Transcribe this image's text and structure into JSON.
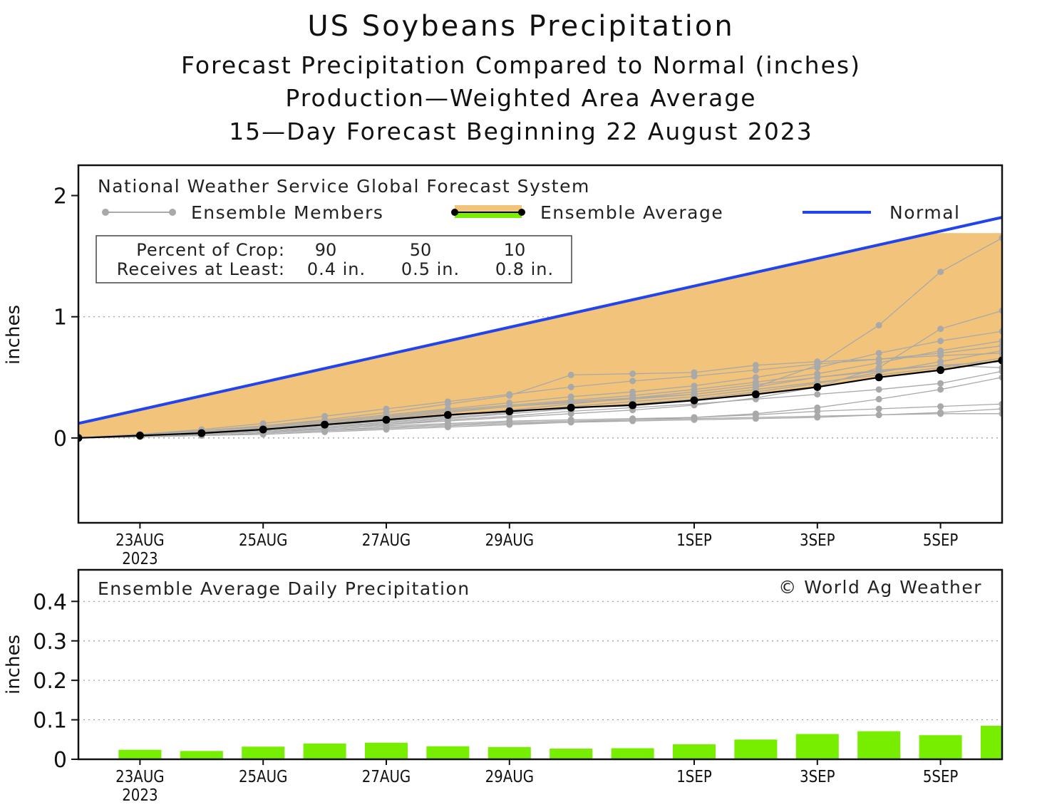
{
  "titles": {
    "line1": "US Soybeans Precipitation",
    "line2": "Forecast Precipitation Compared to Normal (inches)",
    "line3": "Production—Weighted Area Average",
    "line4": "15—Day Forecast Beginning 22 August 2023"
  },
  "colors": {
    "normal": "#2244ee",
    "fill": "#f2c37a",
    "members": "#a9a9a9",
    "average": "#000000",
    "bars": "#77ee00",
    "grid": "#999999"
  },
  "legend": {
    "source": "National Weather Service Global Forecast System",
    "members_label": "Ensemble Members",
    "average_label": "Ensemble Average",
    "normal_label": "Normal"
  },
  "crop_table": {
    "row1_label": "Percent of Crop:",
    "row2_label": "Receives at Least:",
    "percents": [
      "90",
      "50",
      "10"
    ],
    "amounts": [
      "0.4 in.",
      "0.5 in.",
      "0.8 in."
    ]
  },
  "copyright": "© World Ag Weather",
  "chart_data": [
    {
      "type": "line",
      "title": "Forecast Precipitation Compared to Normal (inches)",
      "ylabel": "inches",
      "xlim": [
        0,
        15
      ],
      "ylim": [
        -0.7,
        2.25
      ],
      "yticks": [
        0,
        1,
        2
      ],
      "grid": "dotted at y=0 and y=1",
      "xticks": [
        {
          "x": 1,
          "label": "23AUG",
          "sub": "2023"
        },
        {
          "x": 3,
          "label": "25AUG",
          "sub": ""
        },
        {
          "x": 5,
          "label": "27AUG",
          "sub": ""
        },
        {
          "x": 7,
          "label": "29AUG",
          "sub": ""
        },
        {
          "x": 10,
          "label": "1SEP",
          "sub": ""
        },
        {
          "x": 12,
          "label": "3SEP",
          "sub": ""
        },
        {
          "x": 14,
          "label": "5SEP",
          "sub": ""
        }
      ],
      "normal": {
        "x": [
          0,
          15
        ],
        "y": [
          0.12,
          1.82
        ]
      },
      "fill_top_cap": 1.69,
      "ensemble_average": {
        "x": [
          0,
          1,
          2,
          3,
          4,
          5,
          6,
          7,
          8,
          9,
          10,
          11,
          12,
          13,
          14,
          15
        ],
        "y": [
          0,
          0.02,
          0.04,
          0.07,
          0.11,
          0.15,
          0.19,
          0.22,
          0.25,
          0.27,
          0.31,
          0.36,
          0.42,
          0.5,
          0.56,
          0.64
        ]
      },
      "ensemble_members": [
        [
          0,
          0.03,
          0.06,
          0.09,
          0.13,
          0.18,
          0.23,
          0.27,
          0.31,
          0.35,
          0.4,
          0.46,
          0.53,
          0.62,
          0.72,
          0.8
        ],
        [
          0,
          0.02,
          0.04,
          0.06,
          0.09,
          0.12,
          0.16,
          0.2,
          0.24,
          0.28,
          0.32,
          0.38,
          0.45,
          0.54,
          0.63,
          0.72
        ],
        [
          0,
          0.03,
          0.06,
          0.1,
          0.15,
          0.21,
          0.28,
          0.35,
          0.52,
          0.53,
          0.54,
          0.6,
          0.63,
          0.65,
          0.68,
          0.7
        ],
        [
          0,
          0.02,
          0.04,
          0.07,
          0.11,
          0.16,
          0.21,
          0.26,
          0.3,
          0.33,
          0.36,
          0.42,
          0.6,
          0.93,
          1.37,
          1.65
        ],
        [
          0,
          0.01,
          0.03,
          0.05,
          0.08,
          0.11,
          0.14,
          0.17,
          0.2,
          0.23,
          0.27,
          0.33,
          0.42,
          0.58,
          0.9,
          1.05
        ],
        [
          0,
          0.02,
          0.03,
          0.05,
          0.07,
          0.1,
          0.12,
          0.14,
          0.15,
          0.16,
          0.17,
          0.19,
          0.22,
          0.24,
          0.26,
          0.28
        ],
        [
          0,
          0.01,
          0.02,
          0.04,
          0.06,
          0.08,
          0.1,
          0.12,
          0.13,
          0.14,
          0.15,
          0.16,
          0.17,
          0.19,
          0.21,
          0.24
        ],
        [
          0,
          0.02,
          0.05,
          0.08,
          0.12,
          0.17,
          0.22,
          0.26,
          0.29,
          0.32,
          0.36,
          0.42,
          0.5,
          0.56,
          0.6,
          0.63
        ],
        [
          0,
          0.03,
          0.07,
          0.12,
          0.18,
          0.24,
          0.3,
          0.36,
          0.42,
          0.47,
          0.51,
          0.56,
          0.61,
          0.65,
          0.7,
          0.76
        ],
        [
          0,
          0.01,
          0.02,
          0.03,
          0.05,
          0.07,
          0.09,
          0.11,
          0.13,
          0.15,
          0.17,
          0.2,
          0.25,
          0.32,
          0.4,
          0.5
        ],
        [
          0,
          0.02,
          0.04,
          0.06,
          0.09,
          0.13,
          0.17,
          0.21,
          0.26,
          0.3,
          0.34,
          0.4,
          0.46,
          0.52,
          0.58,
          0.66
        ],
        [
          0,
          0.02,
          0.03,
          0.05,
          0.08,
          0.11,
          0.15,
          0.18,
          0.22,
          0.25,
          0.28,
          0.32,
          0.36,
          0.4,
          0.45,
          0.55
        ],
        [
          0,
          0.01,
          0.02,
          0.04,
          0.06,
          0.09,
          0.11,
          0.13,
          0.14,
          0.15,
          0.16,
          0.17,
          0.18,
          0.19,
          0.2,
          0.2
        ],
        [
          0,
          0.03,
          0.06,
          0.1,
          0.14,
          0.19,
          0.24,
          0.29,
          0.34,
          0.38,
          0.43,
          0.5,
          0.58,
          0.7,
          0.8,
          0.88
        ],
        [
          0,
          0.02,
          0.04,
          0.07,
          0.1,
          0.14,
          0.18,
          0.23,
          0.28,
          0.33,
          0.38,
          0.44,
          0.5,
          0.55,
          0.6,
          0.58
        ]
      ]
    },
    {
      "type": "bar",
      "title": "Ensemble Average Daily Precipitation",
      "ylabel": "inches",
      "xlim": [
        0,
        15
      ],
      "ylim": [
        0,
        0.48
      ],
      "yticks": [
        0,
        0.1,
        0.2,
        0.3,
        0.4
      ],
      "ytick_labels": [
        "0",
        "0.1",
        "0.2",
        "0.3",
        "0.4"
      ],
      "grid": "dotted at 0.1, 0.2, 0.3, 0.4",
      "xticks": [
        {
          "x": 1,
          "label": "23AUG",
          "sub": "2023"
        },
        {
          "x": 3,
          "label": "25AUG",
          "sub": ""
        },
        {
          "x": 5,
          "label": "27AUG",
          "sub": ""
        },
        {
          "x": 7,
          "label": "29AUG",
          "sub": ""
        },
        {
          "x": 10,
          "label": "1SEP",
          "sub": ""
        },
        {
          "x": 12,
          "label": "3SEP",
          "sub": ""
        },
        {
          "x": 14,
          "label": "5SEP",
          "sub": ""
        }
      ],
      "x": [
        1,
        2,
        3,
        4,
        5,
        6,
        7,
        8,
        9,
        10,
        11,
        12,
        13,
        14,
        15
      ],
      "values": [
        0.024,
        0.021,
        0.032,
        0.04,
        0.042,
        0.033,
        0.031,
        0.027,
        0.028,
        0.038,
        0.05,
        0.064,
        0.071,
        0.061,
        0.085
      ]
    }
  ]
}
